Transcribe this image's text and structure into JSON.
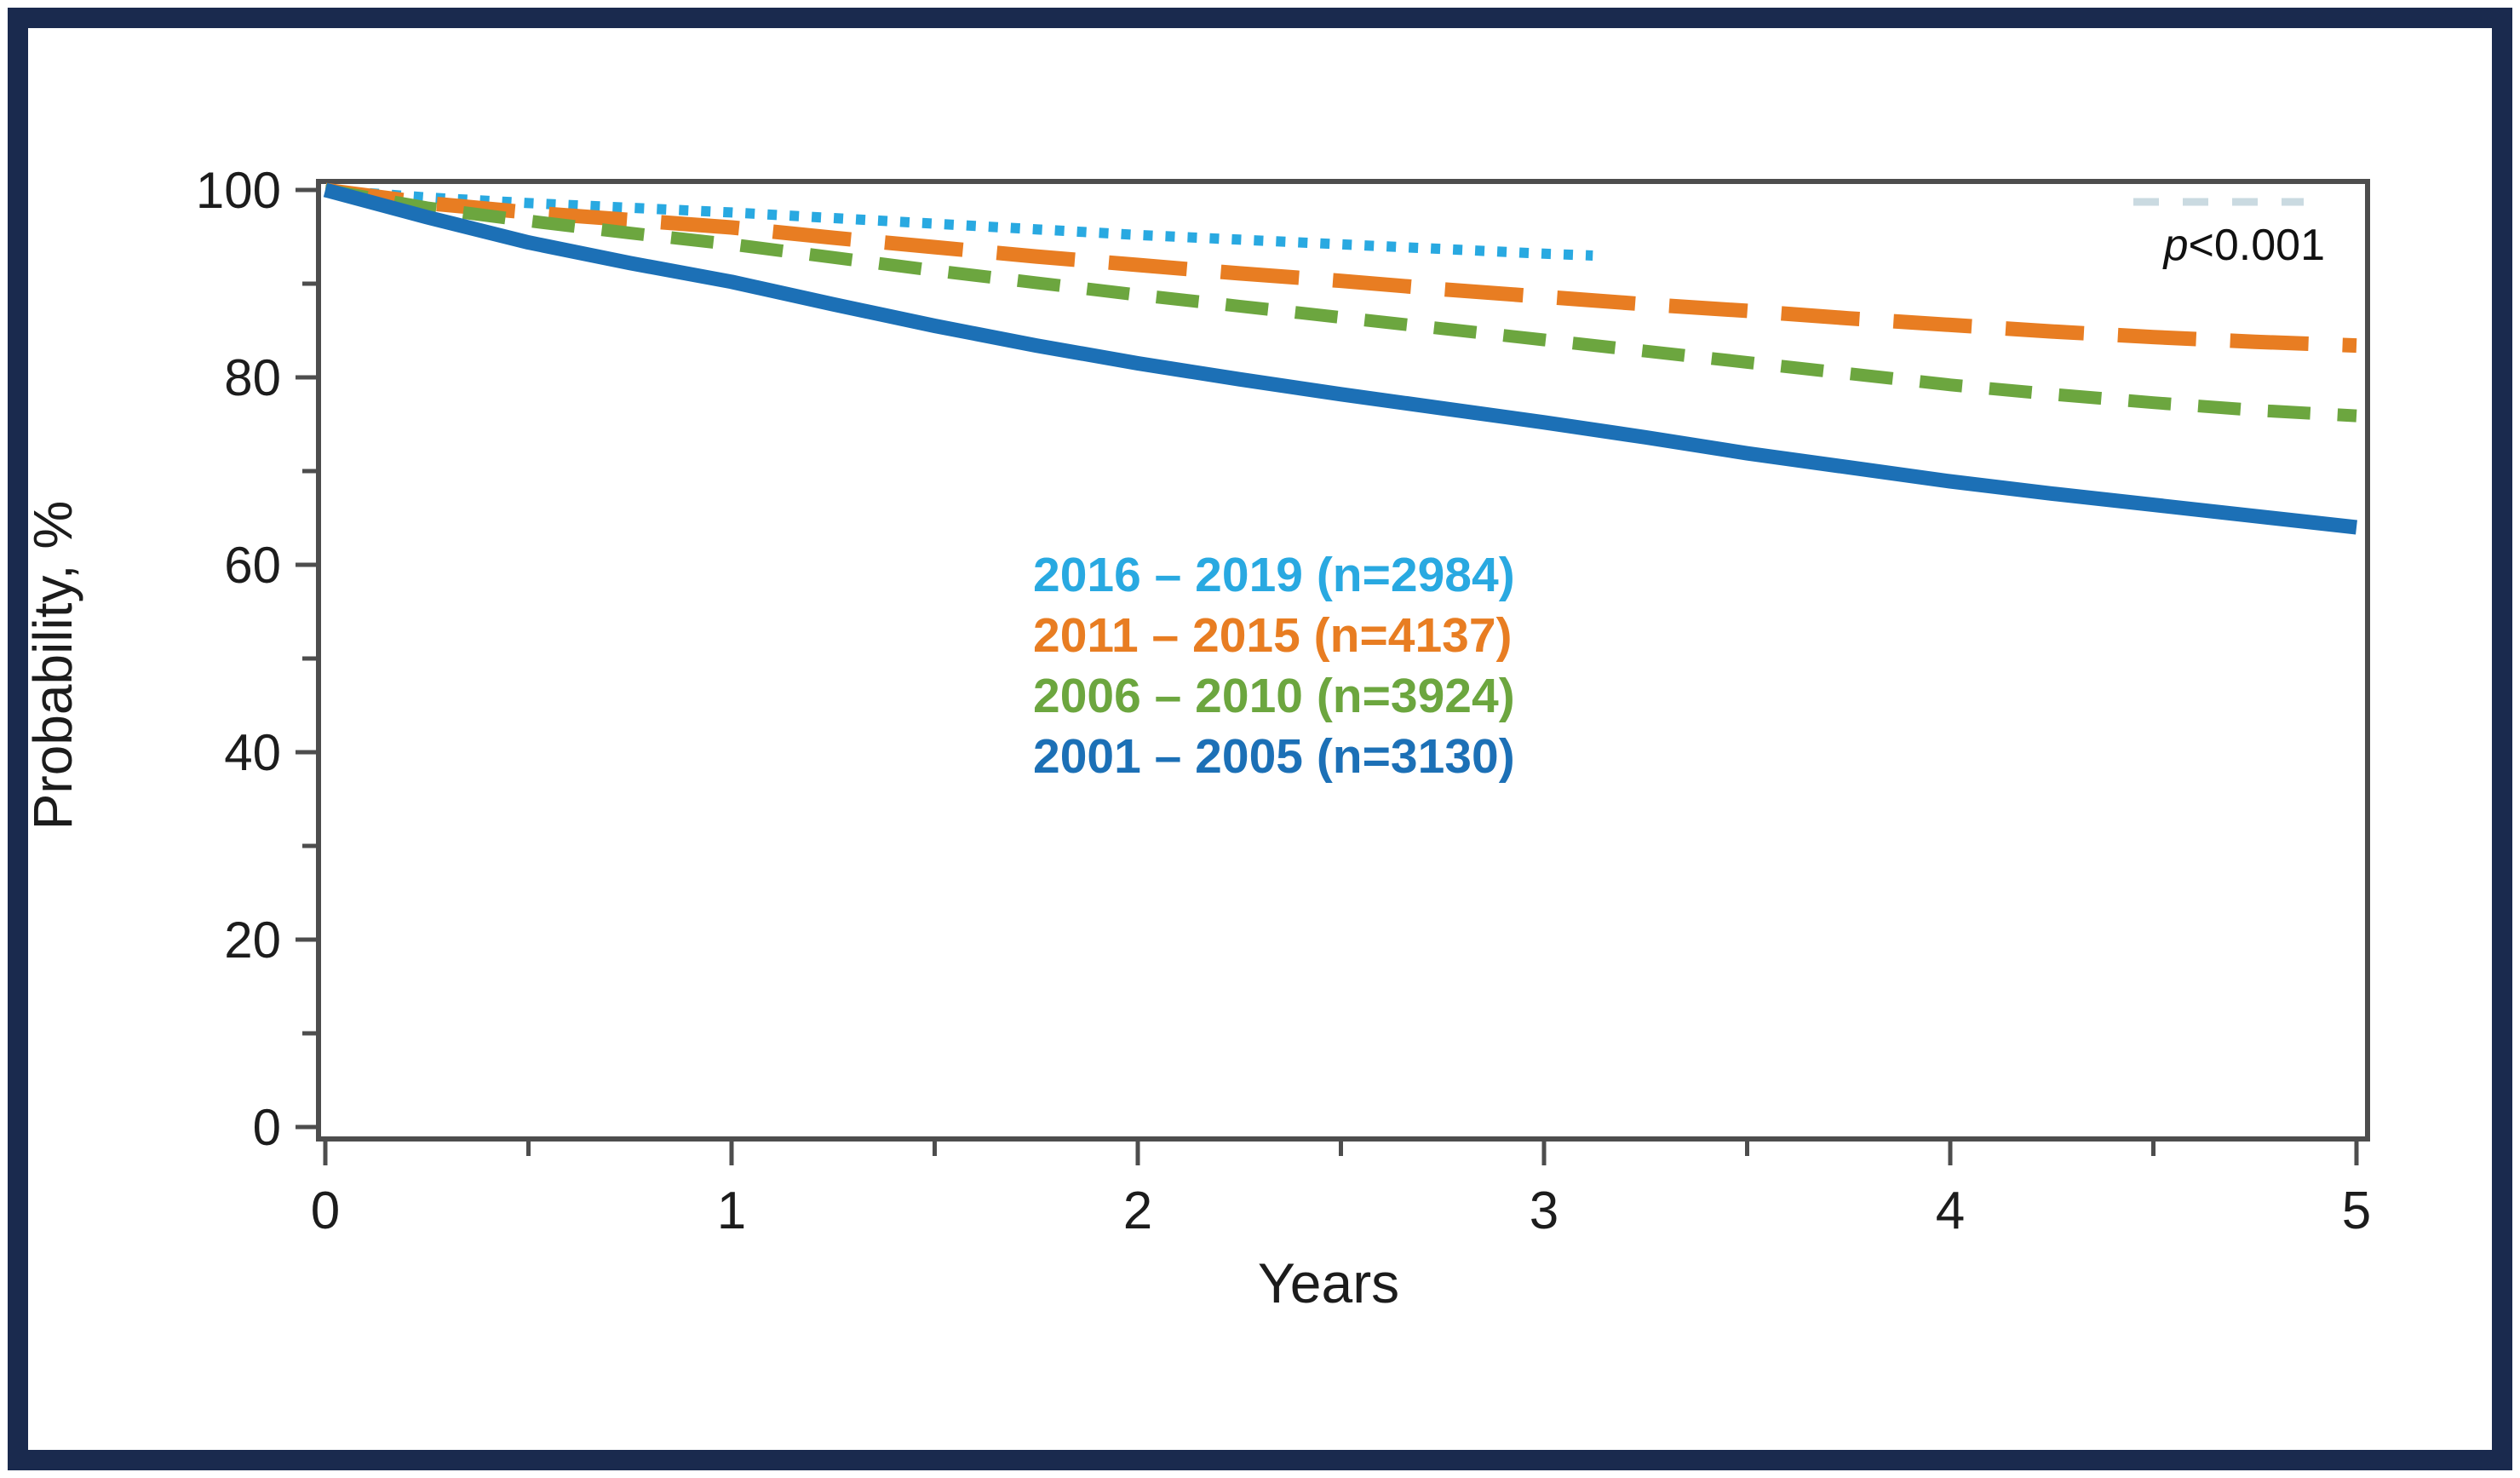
{
  "figure": {
    "border_color": "#1a2a4e",
    "background": "#ffffff",
    "frame_color": "#4d4d4d",
    "text_color": "#1c1c1c"
  },
  "annotation": {
    "p_prefix": "p",
    "p_rest": "<0.001"
  },
  "chart_data": {
    "type": "line",
    "title": "",
    "xlabel": "Years",
    "ylabel": "Probability, %",
    "xlim": [
      0,
      5
    ],
    "ylim": [
      0,
      100
    ],
    "x_ticks": [
      0,
      1,
      2,
      3,
      4,
      5
    ],
    "y_ticks": [
      0,
      20,
      40,
      60,
      80,
      100
    ],
    "x_minor_ticks": [
      0.5,
      1.5,
      2.5,
      3.5,
      4.5
    ],
    "y_minor_ticks": [
      10,
      30,
      50,
      70,
      90
    ],
    "grid": false,
    "legend_position": "center",
    "annotations": [
      {
        "text": "p<0.001",
        "position": "top-right"
      }
    ],
    "series": [
      {
        "name": "2016 – 2019 (n=2984)",
        "color": "#29A9E1",
        "style": "dotted",
        "x": [
          0,
          0.25,
          0.5,
          0.75,
          1,
          1.25,
          1.5,
          1.75,
          2,
          2.25,
          2.5,
          2.75,
          3,
          3.12
        ],
        "y": [
          100,
          99.2,
          98.6,
          98.1,
          97.6,
          97.0,
          96.4,
          95.8,
          95.2,
          94.7,
          94.2,
          93.7,
          93.2,
          93.0
        ]
      },
      {
        "name": "2011 – 2015 (n=4137)",
        "color": "#E87D22",
        "style": "longdash",
        "x": [
          0,
          0.25,
          0.5,
          0.75,
          1,
          1.25,
          1.5,
          1.75,
          2,
          2.25,
          2.5,
          2.75,
          3,
          3.25,
          3.5,
          3.75,
          4,
          4.25,
          4.5,
          4.75,
          5
        ],
        "y": [
          100,
          98.6,
          97.6,
          96.8,
          96.0,
          94.9,
          93.9,
          92.9,
          92.0,
          91.1,
          90.3,
          89.4,
          88.6,
          87.8,
          87.1,
          86.3,
          85.6,
          84.9,
          84.3,
          83.8,
          83.4
        ]
      },
      {
        "name": "2006 – 2010 (n=3924)",
        "color": "#6CA63F",
        "style": "shortdash",
        "x": [
          0,
          0.25,
          0.5,
          0.75,
          1,
          1.25,
          1.5,
          1.75,
          2,
          2.25,
          2.5,
          2.75,
          3,
          3.25,
          3.5,
          3.75,
          4,
          4.25,
          4.5,
          4.75,
          5
        ],
        "y": [
          100,
          98.1,
          96.7,
          95.4,
          94.2,
          92.8,
          91.4,
          90.1,
          88.8,
          87.6,
          86.4,
          85.2,
          84.0,
          82.8,
          81.6,
          80.4,
          79.2,
          78.2,
          77.3,
          76.5,
          75.9
        ]
      },
      {
        "name": "2001 – 2005 (n=3130)",
        "color": "#1C70B6",
        "style": "solid",
        "x": [
          0,
          0.25,
          0.5,
          0.75,
          1,
          1.25,
          1.5,
          1.75,
          2,
          2.25,
          2.5,
          2.75,
          3,
          3.25,
          3.5,
          3.75,
          4,
          4.25,
          4.5,
          4.75,
          5
        ],
        "y": [
          100,
          97.1,
          94.4,
          92.2,
          90.2,
          87.8,
          85.5,
          83.4,
          81.5,
          79.8,
          78.2,
          76.7,
          75.2,
          73.6,
          71.9,
          70.4,
          68.9,
          67.6,
          66.4,
          65.2,
          64.0
        ]
      }
    ]
  }
}
